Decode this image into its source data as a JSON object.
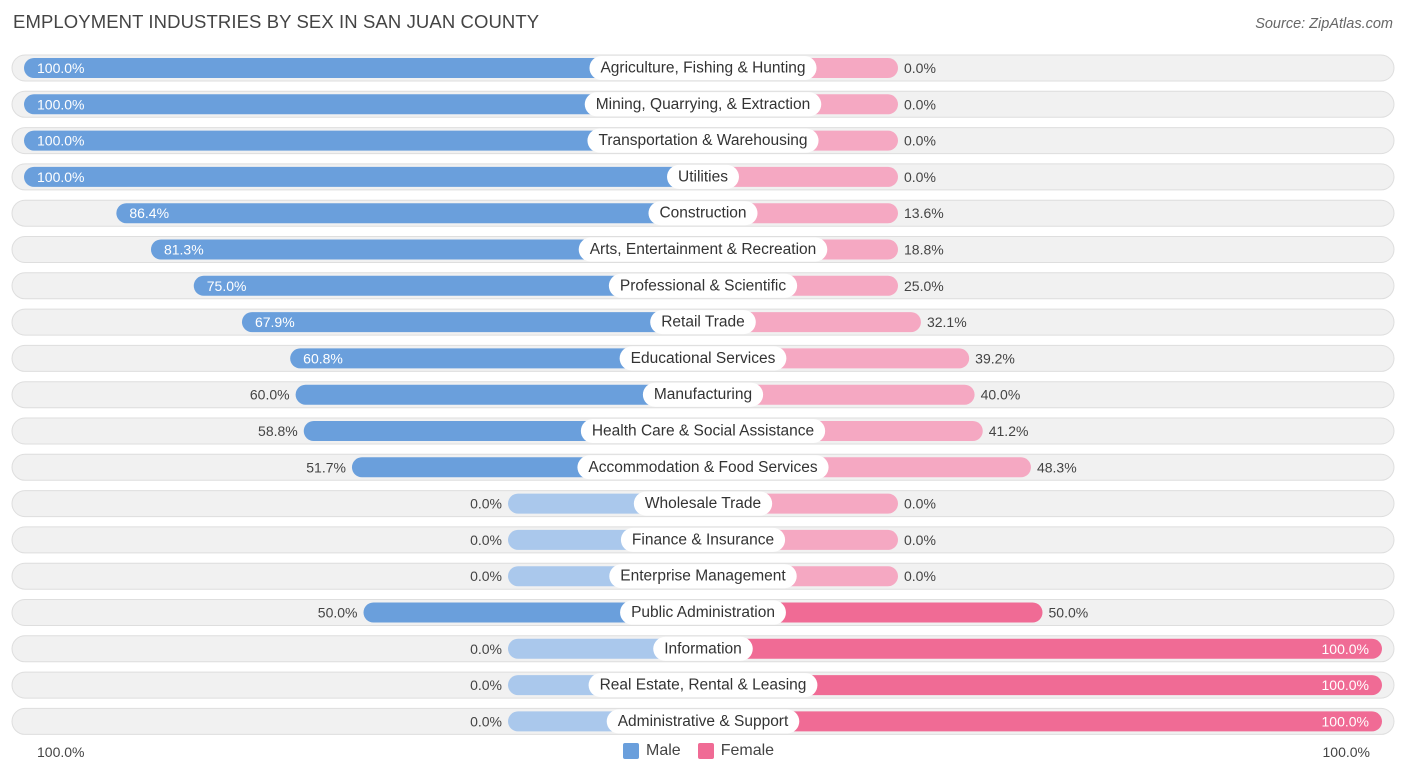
{
  "title": "EMPLOYMENT INDUSTRIES BY SEX IN SAN JUAN COUNTY",
  "source": "Source: ZipAtlas.com",
  "axis": {
    "left_label": "100.0%",
    "right_label": "100.0%"
  },
  "legend": {
    "male_label": "Male",
    "female_label": "Female"
  },
  "colors": {
    "male_strong": "#6a9fdc",
    "male_light": "#aac8ec",
    "female_strong": "#f06b95",
    "female_light": "#f5a8c2",
    "row_bg": "#f1f1f1",
    "row_border": "#dedede"
  },
  "chart_data": {
    "type": "bar",
    "orientation": "horizontal-diverging",
    "title": "EMPLOYMENT INDUSTRIES BY SEX IN SAN JUAN COUNTY",
    "xlim": [
      -100,
      100
    ],
    "categories": [
      "Agriculture, Fishing & Hunting",
      "Mining, Quarrying, & Extraction",
      "Transportation & Warehousing",
      "Utilities",
      "Construction",
      "Arts, Entertainment & Recreation",
      "Professional & Scientific",
      "Retail Trade",
      "Educational Services",
      "Manufacturing",
      "Health Care & Social Assistance",
      "Accommodation & Food Services",
      "Wholesale Trade",
      "Finance & Insurance",
      "Enterprise Management",
      "Public Administration",
      "Information",
      "Real Estate, Rental & Leasing",
      "Administrative & Support"
    ],
    "series": [
      {
        "name": "Male",
        "values": [
          100.0,
          100.0,
          100.0,
          100.0,
          86.4,
          81.3,
          75.0,
          67.9,
          60.8,
          60.0,
          58.8,
          51.7,
          0.0,
          0.0,
          0.0,
          50.0,
          0.0,
          0.0,
          0.0
        ]
      },
      {
        "name": "Female",
        "values": [
          0.0,
          0.0,
          0.0,
          0.0,
          13.6,
          18.8,
          25.0,
          32.1,
          39.2,
          40.0,
          41.2,
          48.3,
          0.0,
          0.0,
          0.0,
          50.0,
          100.0,
          100.0,
          100.0
        ]
      }
    ],
    "value_labels": {
      "male": [
        "100.0%",
        "100.0%",
        "100.0%",
        "100.0%",
        "86.4%",
        "81.3%",
        "75.0%",
        "67.9%",
        "60.8%",
        "60.0%",
        "58.8%",
        "51.7%",
        "0.0%",
        "0.0%",
        "0.0%",
        "50.0%",
        "0.0%",
        "0.0%",
        "0.0%"
      ],
      "female": [
        "0.0%",
        "0.0%",
        "0.0%",
        "0.0%",
        "13.6%",
        "18.8%",
        "25.0%",
        "32.1%",
        "39.2%",
        "40.0%",
        "41.2%",
        "48.3%",
        "0.0%",
        "0.0%",
        "0.0%",
        "50.0%",
        "100.0%",
        "100.0%",
        "100.0%"
      ]
    }
  }
}
